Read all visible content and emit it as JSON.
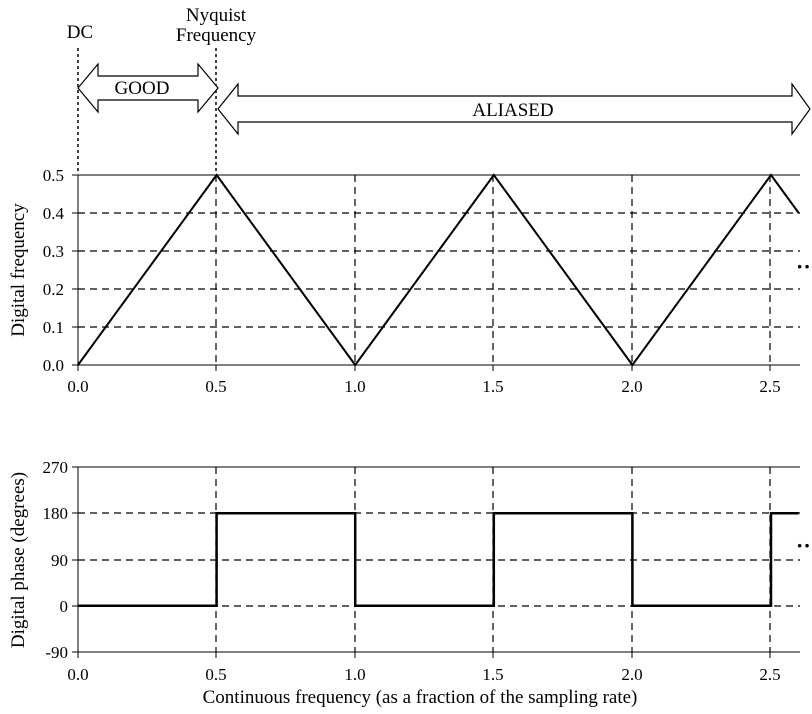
{
  "annotations": {
    "dc": "DC",
    "nyquist_line1": "Nyquist",
    "nyquist_line2": "Frequency",
    "good": "GOOD",
    "aliased": "ALIASED",
    "continuation": "··"
  },
  "chart_data": [
    {
      "type": "line",
      "ylabel": "Digital frequency",
      "xlim": [
        0,
        2.6
      ],
      "ylim": [
        0,
        0.5
      ],
      "x_ticks": [
        "0.0",
        "0.5",
        "1.0",
        "1.5",
        "2.0",
        "2.5"
      ],
      "y_ticks": [
        "0.0",
        "0.1",
        "0.2",
        "0.3",
        "0.4",
        "0.5"
      ],
      "grid": "dashed",
      "series": [
        {
          "x": [
            0,
            0.5,
            1.0,
            1.5,
            2.0,
            2.5,
            2.6
          ],
          "y": [
            0,
            0.5,
            0,
            0.5,
            0,
            0.5,
            0.4
          ]
        }
      ]
    },
    {
      "type": "line",
      "ylabel": "Digital phase (degrees)",
      "xlabel": "Continuous frequency (as a fraction of the sampling rate)",
      "xlim": [
        0,
        2.6
      ],
      "ylim": [
        -90,
        270
      ],
      "x_ticks": [
        "0.0",
        "0.5",
        "1.0",
        "1.5",
        "2.0",
        "2.5"
      ],
      "y_ticks": [
        "-90",
        "0",
        "90",
        "180",
        "270"
      ],
      "grid": "dashed",
      "series": [
        {
          "x": [
            0,
            0.5,
            0.5,
            1.0,
            1.0,
            1.5,
            1.5,
            2.0,
            2.0,
            2.5,
            2.5,
            2.6
          ],
          "y": [
            0,
            0,
            180,
            180,
            0,
            0,
            180,
            180,
            0,
            0,
            180,
            180
          ]
        }
      ]
    }
  ]
}
